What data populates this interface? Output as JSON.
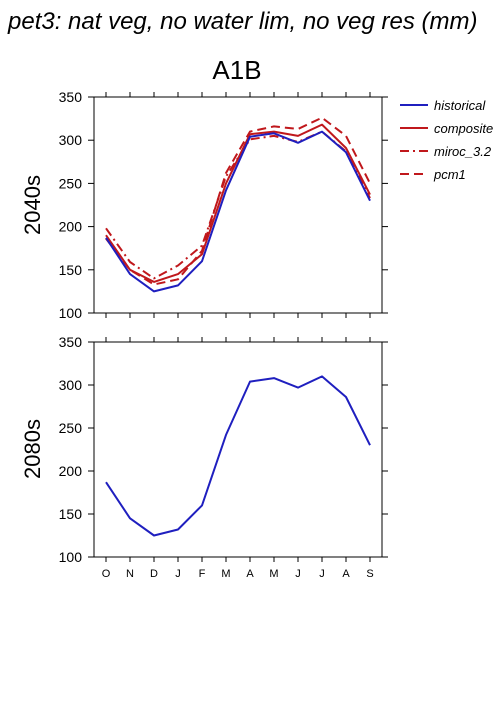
{
  "figure_title": "pet3: nat veg, no water lim, no veg res (mm)",
  "scenario_title": "A1B",
  "colors": {
    "historical": "#1f1fbf",
    "projection": "#c0181c",
    "axis": "#000000"
  },
  "legend": [
    {
      "name": "historical",
      "color": "#1f1fbf",
      "dash": "solid"
    },
    {
      "name": "composite",
      "color": "#c0181c",
      "dash": "solid"
    },
    {
      "name": "miroc_3.2",
      "color": "#c0181c",
      "dash": "dashdot"
    },
    {
      "name": "pcm1",
      "color": "#c0181c",
      "dash": "dashed"
    }
  ],
  "chart_data": [
    {
      "type": "line",
      "row_label": "2040s",
      "ylim": [
        100,
        350
      ],
      "yticks": [
        100,
        150,
        200,
        250,
        300,
        350
      ],
      "categories": [
        "O",
        "N",
        "D",
        "J",
        "F",
        "M",
        "A",
        "M",
        "J",
        "J",
        "A",
        "S"
      ],
      "show_category_labels": false,
      "series": [
        {
          "name": "historical",
          "color": "#1f1fbf",
          "dash": "solid",
          "values": [
            187,
            145,
            125,
            132,
            160,
            242,
            304,
            308,
            297,
            310,
            286,
            230
          ]
        },
        {
          "name": "composite",
          "color": "#c0181c",
          "dash": "solid",
          "values": [
            190,
            150,
            136,
            145,
            168,
            250,
            307,
            310,
            305,
            318,
            291,
            237
          ]
        },
        {
          "name": "miroc_3.2",
          "color": "#c0181c",
          "dash": "dashdot",
          "values": [
            198,
            159,
            140,
            155,
            178,
            258,
            301,
            305,
            298,
            310,
            287,
            233
          ]
        },
        {
          "name": "pcm1",
          "color": "#c0181c",
          "dash": "dashed",
          "values": [
            186,
            150,
            133,
            139,
            172,
            262,
            310,
            316,
            313,
            326,
            305,
            250
          ]
        }
      ]
    },
    {
      "type": "line",
      "row_label": "2080s",
      "ylim": [
        100,
        350
      ],
      "yticks": [
        100,
        150,
        200,
        250,
        300,
        350
      ],
      "categories": [
        "O",
        "N",
        "D",
        "J",
        "F",
        "M",
        "A",
        "M",
        "J",
        "J",
        "A",
        "S"
      ],
      "show_category_labels": true,
      "series": [
        {
          "name": "historical",
          "color": "#1f1fbf",
          "dash": "solid",
          "values": [
            187,
            145,
            125,
            132,
            160,
            242,
            304,
            308,
            297,
            310,
            286,
            230
          ]
        }
      ]
    }
  ]
}
